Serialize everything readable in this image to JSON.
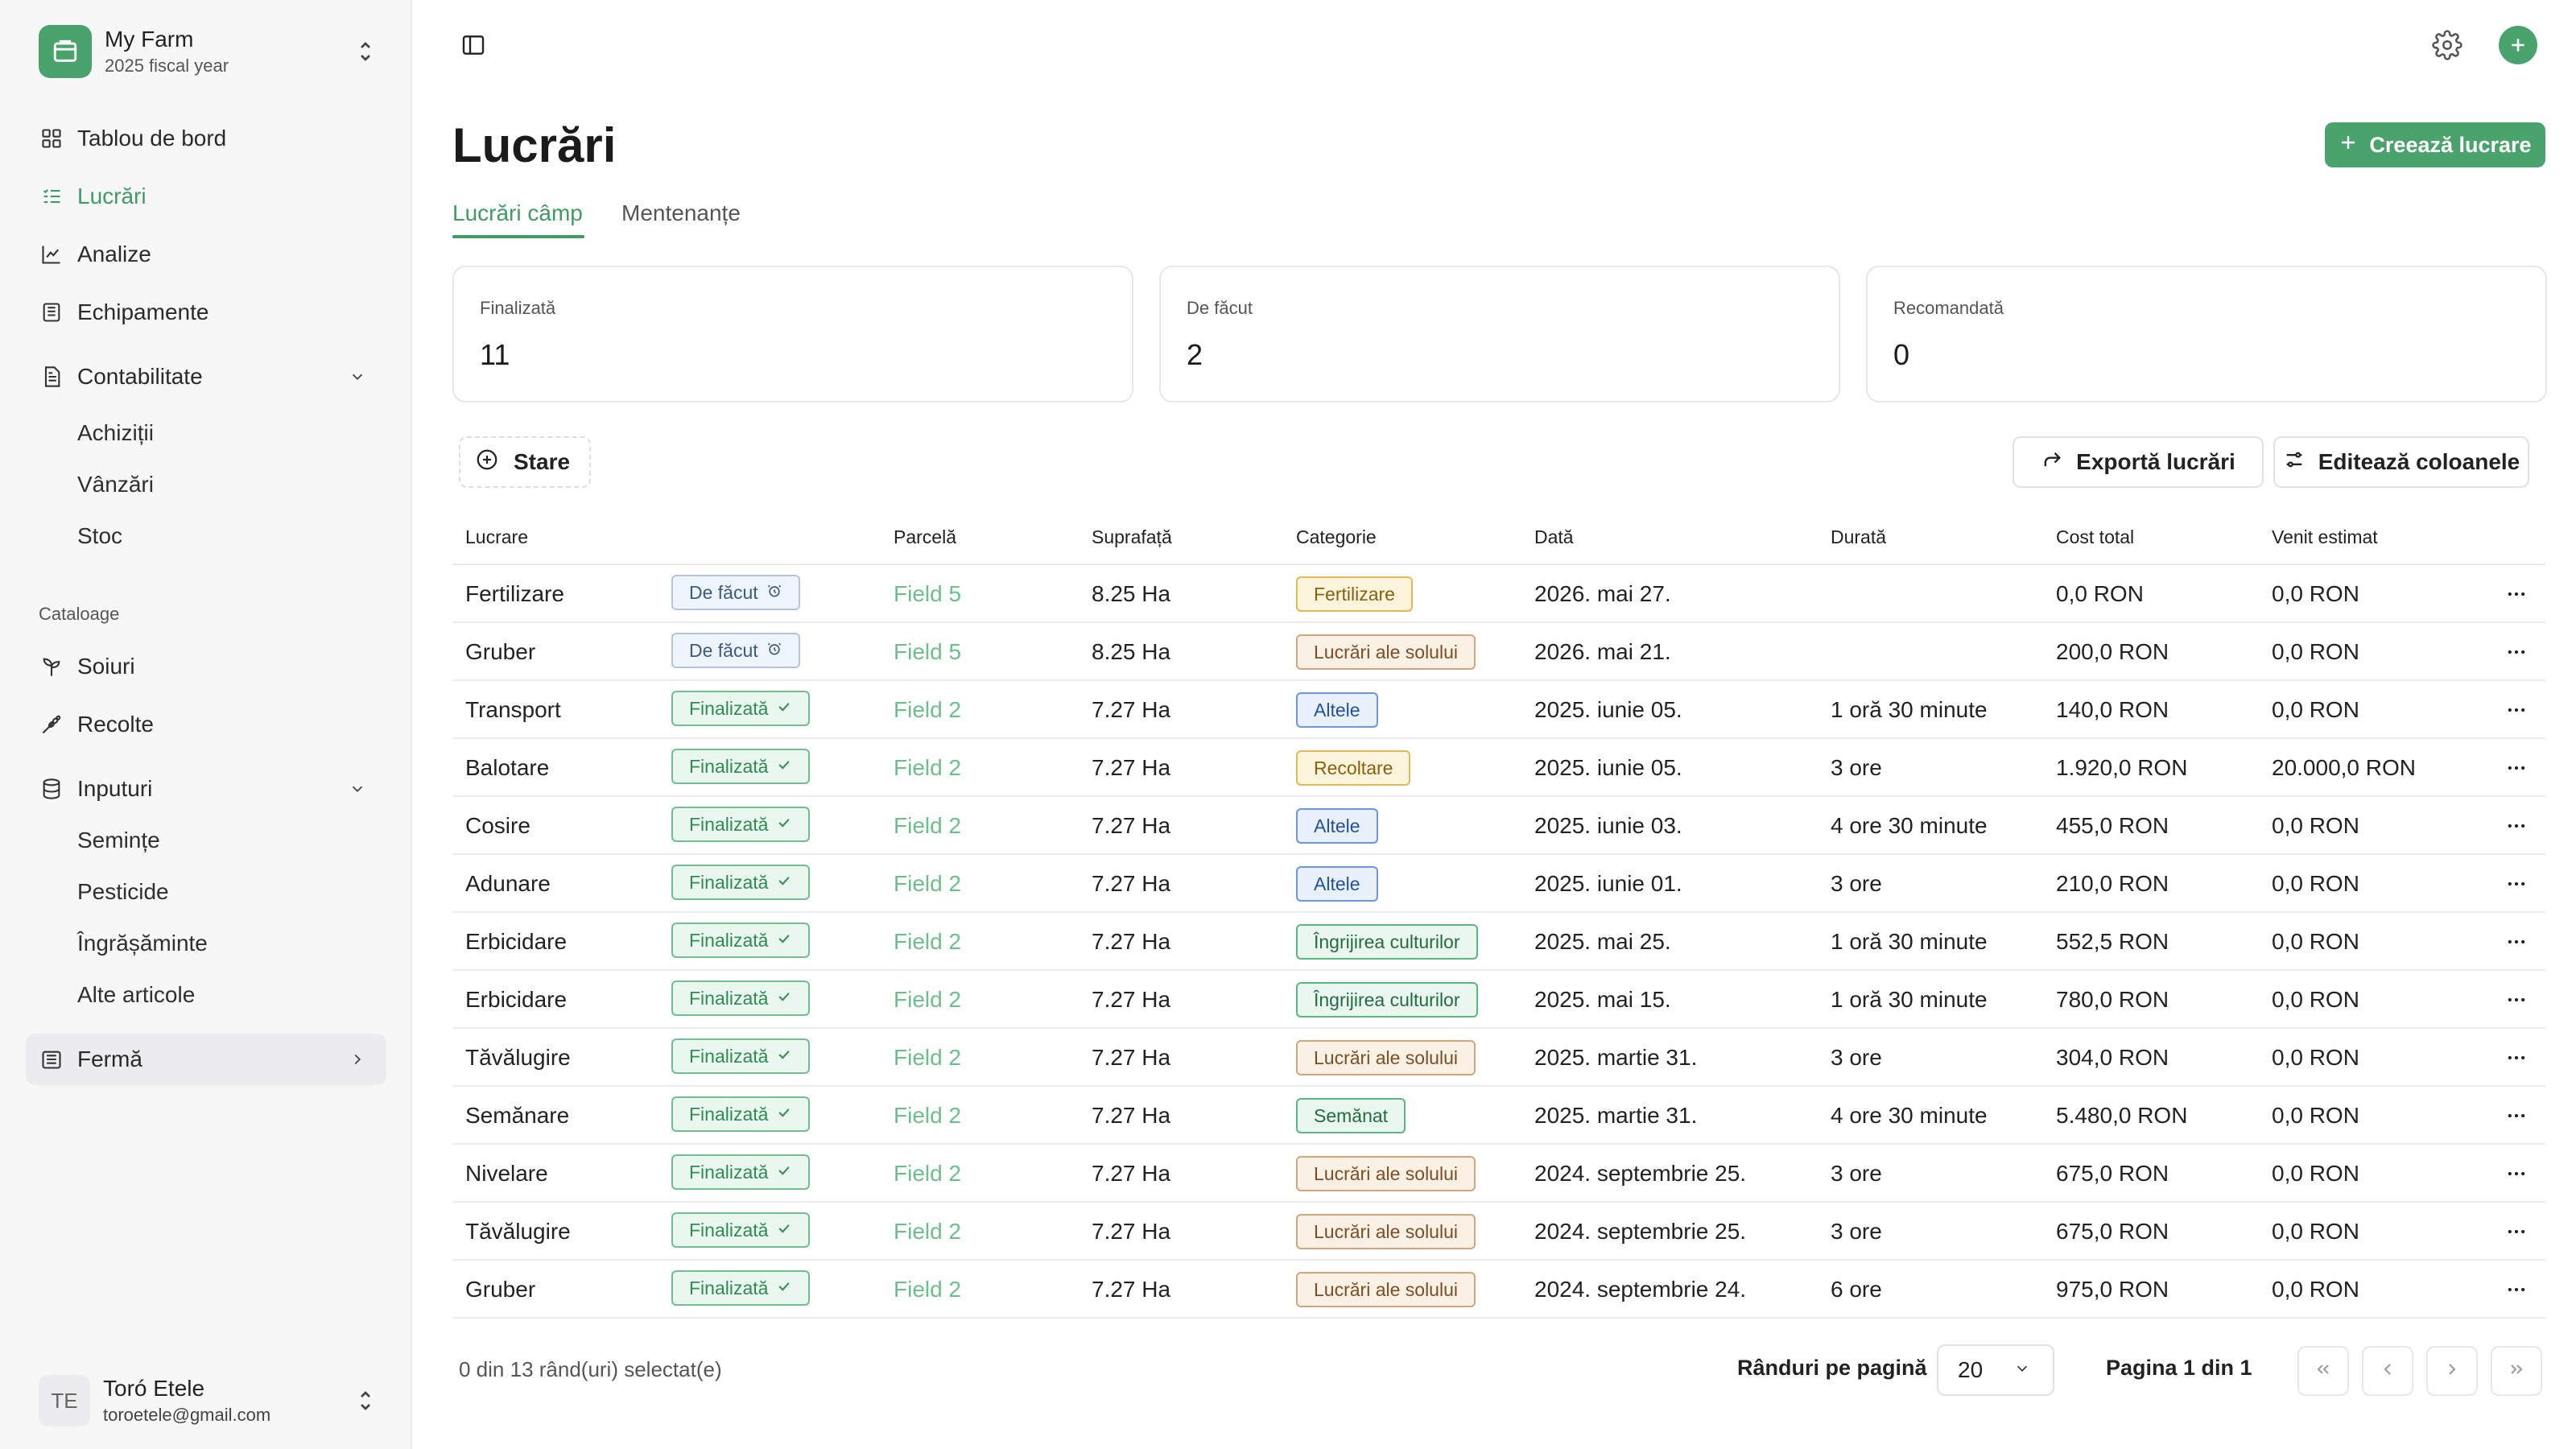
{
  "sidebar": {
    "farm": {
      "name": "My Farm",
      "subtitle": "2025 fiscal year"
    },
    "nav": [
      {
        "label": "Tablou de bord",
        "icon": "dashboard-icon"
      },
      {
        "label": "Lucrări",
        "icon": "list-icon",
        "active": true
      },
      {
        "label": "Analize",
        "icon": "chart-icon"
      },
      {
        "label": "Echipamente",
        "icon": "equipment-icon"
      },
      {
        "label": "Contabilitate",
        "icon": "accounting-icon",
        "expanded": true
      }
    ],
    "accounting_sub": [
      "Achiziții",
      "Vânzări",
      "Stoc"
    ],
    "catalogs_label": "Cataloage",
    "catalogs": [
      {
        "label": "Soiuri",
        "icon": "sprout-icon"
      },
      {
        "label": "Recolte",
        "icon": "wheat-icon"
      },
      {
        "label": "Inputuri",
        "icon": "database-icon",
        "expanded": true
      }
    ],
    "inputs_sub": [
      "Semințe",
      "Pesticide",
      "Îngrășăminte",
      "Alte articole"
    ],
    "farm_item": {
      "label": "Fermă",
      "icon": "building-icon"
    },
    "user": {
      "initials": "TE",
      "name": "Toró Etele",
      "email": "toroetele@gmail.com"
    }
  },
  "header": {
    "title": "Lucrări",
    "create_label": "Creează lucrare",
    "tabs": [
      {
        "label": "Lucrări câmp",
        "active": true
      },
      {
        "label": "Mentenanțe",
        "active": false
      }
    ]
  },
  "stats": [
    {
      "label": "Finalizată",
      "value": "11"
    },
    {
      "label": "De făcut",
      "value": "2"
    },
    {
      "label": "Recomandată",
      "value": "0"
    }
  ],
  "toolbar": {
    "filter_label": "Stare",
    "export_label": "Exportă lucrări",
    "edit_columns_label": "Editează coloanele"
  },
  "table": {
    "columns": [
      "Lucrare",
      "Parcelă",
      "Suprafață",
      "Categorie",
      "Dată",
      "Durată",
      "Cost total",
      "Venit estimat"
    ],
    "rows": [
      {
        "name": "Fertilizare",
        "status": "De făcut",
        "status_kind": "todo",
        "parcel": "Field 5",
        "area": "8.25 Ha",
        "category": "Fertilizare",
        "cat_kind": "orange",
        "date": "2026. mai 27.",
        "duration": "",
        "cost": "0,0 RON",
        "revenue": "0,0 RON"
      },
      {
        "name": "Gruber",
        "status": "De făcut",
        "status_kind": "todo",
        "parcel": "Field 5",
        "area": "8.25 Ha",
        "category": "Lucrări ale solului",
        "cat_kind": "brown",
        "date": "2026. mai 21.",
        "duration": "",
        "cost": "200,0 RON",
        "revenue": "0,0 RON"
      },
      {
        "name": "Transport",
        "status": "Finalizată",
        "status_kind": "done",
        "parcel": "Field 2",
        "area": "7.27 Ha",
        "category": "Altele",
        "cat_kind": "blue",
        "date": "2025. iunie 05.",
        "duration": "1 oră 30 minute",
        "cost": "140,0 RON",
        "revenue": "0,0 RON"
      },
      {
        "name": "Balotare",
        "status": "Finalizată",
        "status_kind": "done",
        "parcel": "Field 2",
        "area": "7.27 Ha",
        "category": "Recoltare",
        "cat_kind": "orange",
        "date": "2025. iunie 05.",
        "duration": "3 ore",
        "cost": "1.920,0 RON",
        "revenue": "20.000,0 RON"
      },
      {
        "name": "Cosire",
        "status": "Finalizată",
        "status_kind": "done",
        "parcel": "Field 2",
        "area": "7.27 Ha",
        "category": "Altele",
        "cat_kind": "blue",
        "date": "2025. iunie 03.",
        "duration": "4 ore 30 minute",
        "cost": "455,0 RON",
        "revenue": "0,0 RON"
      },
      {
        "name": "Adunare",
        "status": "Finalizată",
        "status_kind": "done",
        "parcel": "Field 2",
        "area": "7.27 Ha",
        "category": "Altele",
        "cat_kind": "blue",
        "date": "2025. iunie 01.",
        "duration": "3 ore",
        "cost": "210,0 RON",
        "revenue": "0,0 RON"
      },
      {
        "name": "Erbicidare",
        "status": "Finalizată",
        "status_kind": "done",
        "parcel": "Field 2",
        "area": "7.27 Ha",
        "category": "Îngrijirea culturilor",
        "cat_kind": "green",
        "date": "2025. mai 25.",
        "duration": "1 oră 30 minute",
        "cost": "552,5 RON",
        "revenue": "0,0 RON"
      },
      {
        "name": "Erbicidare",
        "status": "Finalizată",
        "status_kind": "done",
        "parcel": "Field 2",
        "area": "7.27 Ha",
        "category": "Îngrijirea culturilor",
        "cat_kind": "green",
        "date": "2025. mai 15.",
        "duration": "1 oră 30 minute",
        "cost": "780,0 RON",
        "revenue": "0,0 RON"
      },
      {
        "name": "Tăvălugire",
        "status": "Finalizată",
        "status_kind": "done",
        "parcel": "Field 2",
        "area": "7.27 Ha",
        "category": "Lucrări ale solului",
        "cat_kind": "brown",
        "date": "2025. martie 31.",
        "duration": "3 ore",
        "cost": "304,0 RON",
        "revenue": "0,0 RON"
      },
      {
        "name": "Semănare",
        "status": "Finalizată",
        "status_kind": "done",
        "parcel": "Field 2",
        "area": "7.27 Ha",
        "category": "Semănat",
        "cat_kind": "green",
        "date": "2025. martie 31.",
        "duration": "4 ore 30 minute",
        "cost": "5.480,0 RON",
        "revenue": "0,0 RON"
      },
      {
        "name": "Nivelare",
        "status": "Finalizată",
        "status_kind": "done",
        "parcel": "Field 2",
        "area": "7.27 Ha",
        "category": "Lucrări ale solului",
        "cat_kind": "brown",
        "date": "2024. septembrie 25.",
        "duration": "3 ore",
        "cost": "675,0 RON",
        "revenue": "0,0 RON"
      },
      {
        "name": "Tăvălugire",
        "status": "Finalizată",
        "status_kind": "done",
        "parcel": "Field 2",
        "area": "7.27 Ha",
        "category": "Lucrări ale solului",
        "cat_kind": "brown",
        "date": "2024. septembrie 25.",
        "duration": "3 ore",
        "cost": "675,0 RON",
        "revenue": "0,0 RON"
      },
      {
        "name": "Gruber",
        "status": "Finalizată",
        "status_kind": "done",
        "parcel": "Field 2",
        "area": "7.27 Ha",
        "category": "Lucrări ale solului",
        "cat_kind": "brown",
        "date": "2024. septembrie 24.",
        "duration": "6 ore",
        "cost": "975,0 RON",
        "revenue": "0,0 RON"
      }
    ]
  },
  "footer": {
    "selection": "0 din 13 rând(uri) selectat(e)",
    "rows_per_page_label": "Rânduri pe pagină",
    "rows_per_page_value": "20",
    "page_info": "Pagina 1 din 1"
  },
  "colors": {
    "accent": "#4aa36d",
    "accent_text": "#3f9b62",
    "field_link": "#6cbf8a"
  }
}
